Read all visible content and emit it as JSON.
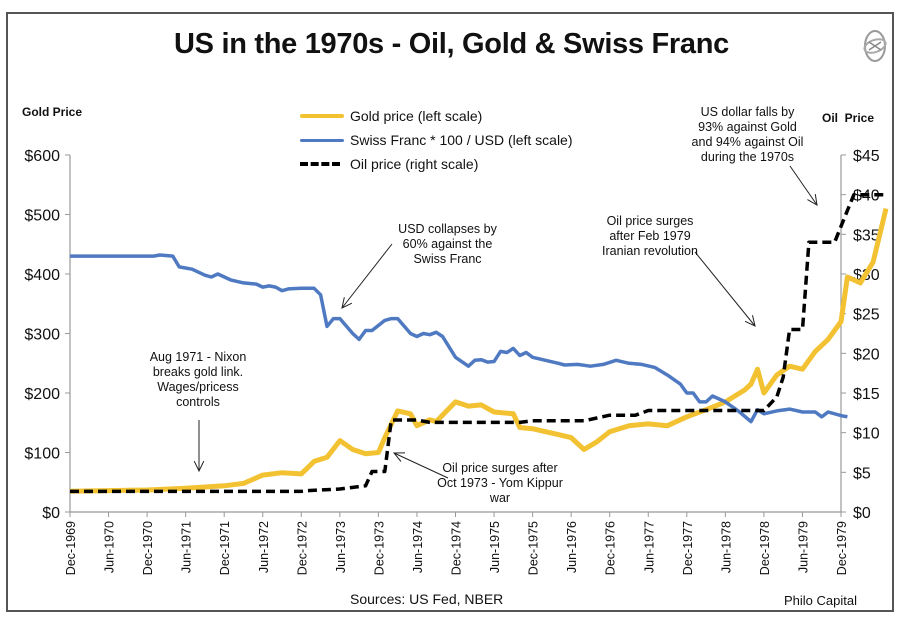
{
  "chart_data": {
    "type": "line",
    "title": "US in the 1970s - Oil, Gold & Swiss Franc",
    "ylabel_left": "Gold Price",
    "ylabel_right": "Oil  Price",
    "xlabel": "",
    "ylim_left": [
      0,
      600
    ],
    "ylim_right": [
      0,
      45
    ],
    "yticks_left": [
      "$0",
      "$100",
      "$200",
      "$300",
      "$400",
      "$500",
      "$600"
    ],
    "yticks_right": [
      "$0",
      "$5",
      "$10",
      "$15",
      "$20",
      "$25",
      "$30",
      "$35",
      "$40",
      "$45"
    ],
    "xticks": [
      "Dec-1969",
      "Jun-1970",
      "Dec-1970",
      "Jun-1971",
      "Dec-1971",
      "Jun-1972",
      "Dec-1972",
      "Jun-1973",
      "Dec-1973",
      "Jun-1974",
      "Dec-1974",
      "Jun-1975",
      "Dec-1975",
      "Jun-1976",
      "Dec-1976",
      "Jun-1977",
      "Dec-1977",
      "Jun-1978",
      "Dec-1978",
      "Jun-1979",
      "Dec-1979"
    ],
    "x_unit": "months since Dec-1969",
    "grid": false,
    "legend_position": "top-center",
    "series": [
      {
        "name": "Gold price (left scale)",
        "axis": "left",
        "color": "#F2C232",
        "style": "solid",
        "points": [
          [
            0,
            35
          ],
          [
            6,
            36
          ],
          [
            12,
            37
          ],
          [
            18,
            40
          ],
          [
            21,
            42
          ],
          [
            24,
            44
          ],
          [
            27,
            48
          ],
          [
            30,
            62
          ],
          [
            33,
            66
          ],
          [
            36,
            64
          ],
          [
            38,
            85
          ],
          [
            40,
            92
          ],
          [
            42,
            120
          ],
          [
            44,
            105
          ],
          [
            46,
            98
          ],
          [
            48,
            100
          ],
          [
            49,
            125
          ],
          [
            51,
            170
          ],
          [
            53,
            165
          ],
          [
            54,
            145
          ],
          [
            56,
            155
          ],
          [
            57,
            152
          ],
          [
            60,
            185
          ],
          [
            62,
            178
          ],
          [
            64,
            180
          ],
          [
            66,
            168
          ],
          [
            69,
            165
          ],
          [
            70,
            142
          ],
          [
            72,
            140
          ],
          [
            74,
            135
          ],
          [
            76,
            130
          ],
          [
            78,
            125
          ],
          [
            80,
            105
          ],
          [
            82,
            118
          ],
          [
            84,
            135
          ],
          [
            87,
            145
          ],
          [
            90,
            148
          ],
          [
            93,
            145
          ],
          [
            96,
            160
          ],
          [
            99,
            172
          ],
          [
            102,
            185
          ],
          [
            105,
            205
          ],
          [
            106,
            215
          ],
          [
            107,
            240
          ],
          [
            108,
            200
          ],
          [
            110,
            230
          ],
          [
            112,
            245
          ],
          [
            114,
            240
          ],
          [
            116,
            270
          ],
          [
            118,
            290
          ],
          [
            120,
            320
          ],
          [
            121,
            395
          ],
          [
            123,
            385
          ],
          [
            125,
            420
          ],
          [
            127,
            510
          ]
        ]
      },
      {
        "name": "Swiss Franc * 100 / USD (left scale)",
        "axis": "left",
        "color": "#4F7AC2",
        "style": "solid",
        "points": [
          [
            0,
            430
          ],
          [
            13,
            430
          ],
          [
            14,
            432
          ],
          [
            16,
            430
          ],
          [
            17,
            412
          ],
          [
            19,
            408
          ],
          [
            21,
            398
          ],
          [
            22,
            395
          ],
          [
            23,
            400
          ],
          [
            25,
            390
          ],
          [
            27,
            385
          ],
          [
            29,
            383
          ],
          [
            30,
            378
          ],
          [
            31,
            380
          ],
          [
            32,
            378
          ],
          [
            33,
            372
          ],
          [
            34,
            375
          ],
          [
            36,
            376
          ],
          [
            38,
            376
          ],
          [
            39,
            365
          ],
          [
            40,
            312
          ],
          [
            41,
            325
          ],
          [
            42,
            325
          ],
          [
            44,
            300
          ],
          [
            45,
            290
          ],
          [
            46,
            305
          ],
          [
            47,
            305
          ],
          [
            49,
            322
          ],
          [
            50,
            325
          ],
          [
            51,
            325
          ],
          [
            53,
            300
          ],
          [
            54,
            295
          ],
          [
            55,
            300
          ],
          [
            56,
            298
          ],
          [
            57,
            302
          ],
          [
            58,
            295
          ],
          [
            60,
            260
          ],
          [
            62,
            245
          ],
          [
            63,
            255
          ],
          [
            64,
            256
          ],
          [
            65,
            252
          ],
          [
            66,
            253
          ],
          [
            67,
            270
          ],
          [
            68,
            268
          ],
          [
            69,
            275
          ],
          [
            70,
            263
          ],
          [
            71,
            268
          ],
          [
            72,
            260
          ],
          [
            74,
            255
          ],
          [
            76,
            250
          ],
          [
            77,
            247
          ],
          [
            79,
            248
          ],
          [
            81,
            245
          ],
          [
            83,
            248
          ],
          [
            85,
            255
          ],
          [
            87,
            250
          ],
          [
            89,
            248
          ],
          [
            91,
            243
          ],
          [
            93,
            230
          ],
          [
            95,
            215
          ],
          [
            96,
            200
          ],
          [
            97,
            200
          ],
          [
            98,
            185
          ],
          [
            99,
            185
          ],
          [
            100,
            195
          ],
          [
            102,
            185
          ],
          [
            104,
            170
          ],
          [
            106,
            152
          ],
          [
            107,
            172
          ],
          [
            108,
            165
          ],
          [
            110,
            170
          ],
          [
            112,
            173
          ],
          [
            114,
            168
          ],
          [
            116,
            168
          ],
          [
            117,
            160
          ],
          [
            118,
            168
          ],
          [
            120,
            162
          ],
          [
            121,
            160
          ]
        ]
      },
      {
        "name": "Oil price (right scale)",
        "axis": "right",
        "color": "#000000",
        "style": "dashed",
        "points": [
          [
            0,
            2.6
          ],
          [
            12,
            2.6
          ],
          [
            24,
            2.6
          ],
          [
            36,
            2.6
          ],
          [
            37,
            2.7
          ],
          [
            42,
            2.9
          ],
          [
            46,
            3.3
          ],
          [
            47,
            5.1
          ],
          [
            49,
            5.1
          ],
          [
            50,
            11.6
          ],
          [
            54,
            11.6
          ],
          [
            56,
            11.3
          ],
          [
            66,
            11.3
          ],
          [
            70,
            11.3
          ],
          [
            72,
            11.5
          ],
          [
            80,
            11.5
          ],
          [
            84,
            12.2
          ],
          [
            88,
            12.2
          ],
          [
            90,
            12.8
          ],
          [
            108,
            12.8
          ],
          [
            110,
            14.5
          ],
          [
            111,
            17
          ],
          [
            112,
            23
          ],
          [
            114,
            23
          ],
          [
            115,
            34
          ],
          [
            119,
            34
          ],
          [
            121,
            38
          ],
          [
            122,
            40
          ],
          [
            127,
            40
          ]
        ]
      }
    ],
    "annotations": [
      {
        "id": "nixon",
        "lines": [
          "Aug 1971 - Nixon",
          "breaks gold link.",
          "Wages/pricess",
          "controls"
        ]
      },
      {
        "id": "chf",
        "lines": [
          "USD collapses by",
          "60%  against the",
          "Swiss Franc"
        ]
      },
      {
        "id": "yomkippur",
        "lines": [
          "Oil price surges after",
          "Oct 1973 - Yom Kippur",
          "war"
        ]
      },
      {
        "id": "iran",
        "lines": [
          "Oil price surges",
          "after Feb 1979",
          "Iranian revolution"
        ]
      },
      {
        "id": "dollar",
        "lines": [
          "US dollar falls by",
          "93% against Gold",
          "and 94% against Oil",
          "during the 1970s"
        ]
      }
    ],
    "source": "Sources: US Fed, NBER",
    "credit": "Philo Capital"
  }
}
